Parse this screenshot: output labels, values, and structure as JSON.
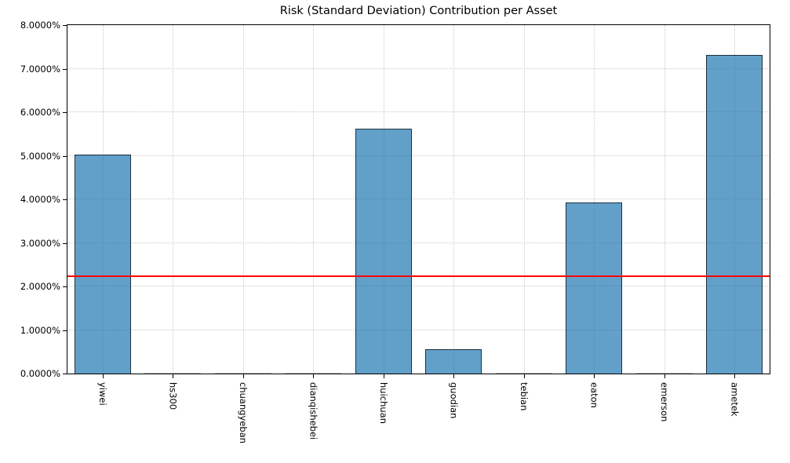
{
  "chart_data": {
    "type": "bar",
    "title": "Risk (Standard Deviation) Contribution per Asset",
    "categories": [
      "yiwei",
      "hs300",
      "chuangyeban",
      "dianqishebei",
      "huichuan",
      "guodian",
      "tebian",
      "eaton",
      "emerson",
      "ametek"
    ],
    "values": [
      5.02,
      0.01,
      0.01,
      0.01,
      5.62,
      0.55,
      0.01,
      3.92,
      0.01,
      7.32
    ],
    "value_unit": "%",
    "xlabel": "",
    "ylabel": "",
    "ylim": [
      0,
      8
    ],
    "ytick_labels": [
      "0.0000%",
      "1.0000%",
      "2.0000%",
      "3.0000%",
      "4.0000%",
      "5.0000%",
      "6.0000%",
      "7.0000%",
      "8.0000%"
    ],
    "grid": "dotted, light gray, both axes",
    "legend": "none",
    "mean_line": {
      "value": 2.24,
      "color": "#ff0000"
    },
    "colors": {
      "bar_fill": "#1f77b4",
      "bar_fill_opacity": 0.7,
      "bar_edge": "#000000",
      "bar_edge_opacity": 0.7,
      "near_zero_bar": "#bbbbbb",
      "gridline": "#c9c9c9",
      "spine": "#000000",
      "background": "#ffffff"
    }
  }
}
